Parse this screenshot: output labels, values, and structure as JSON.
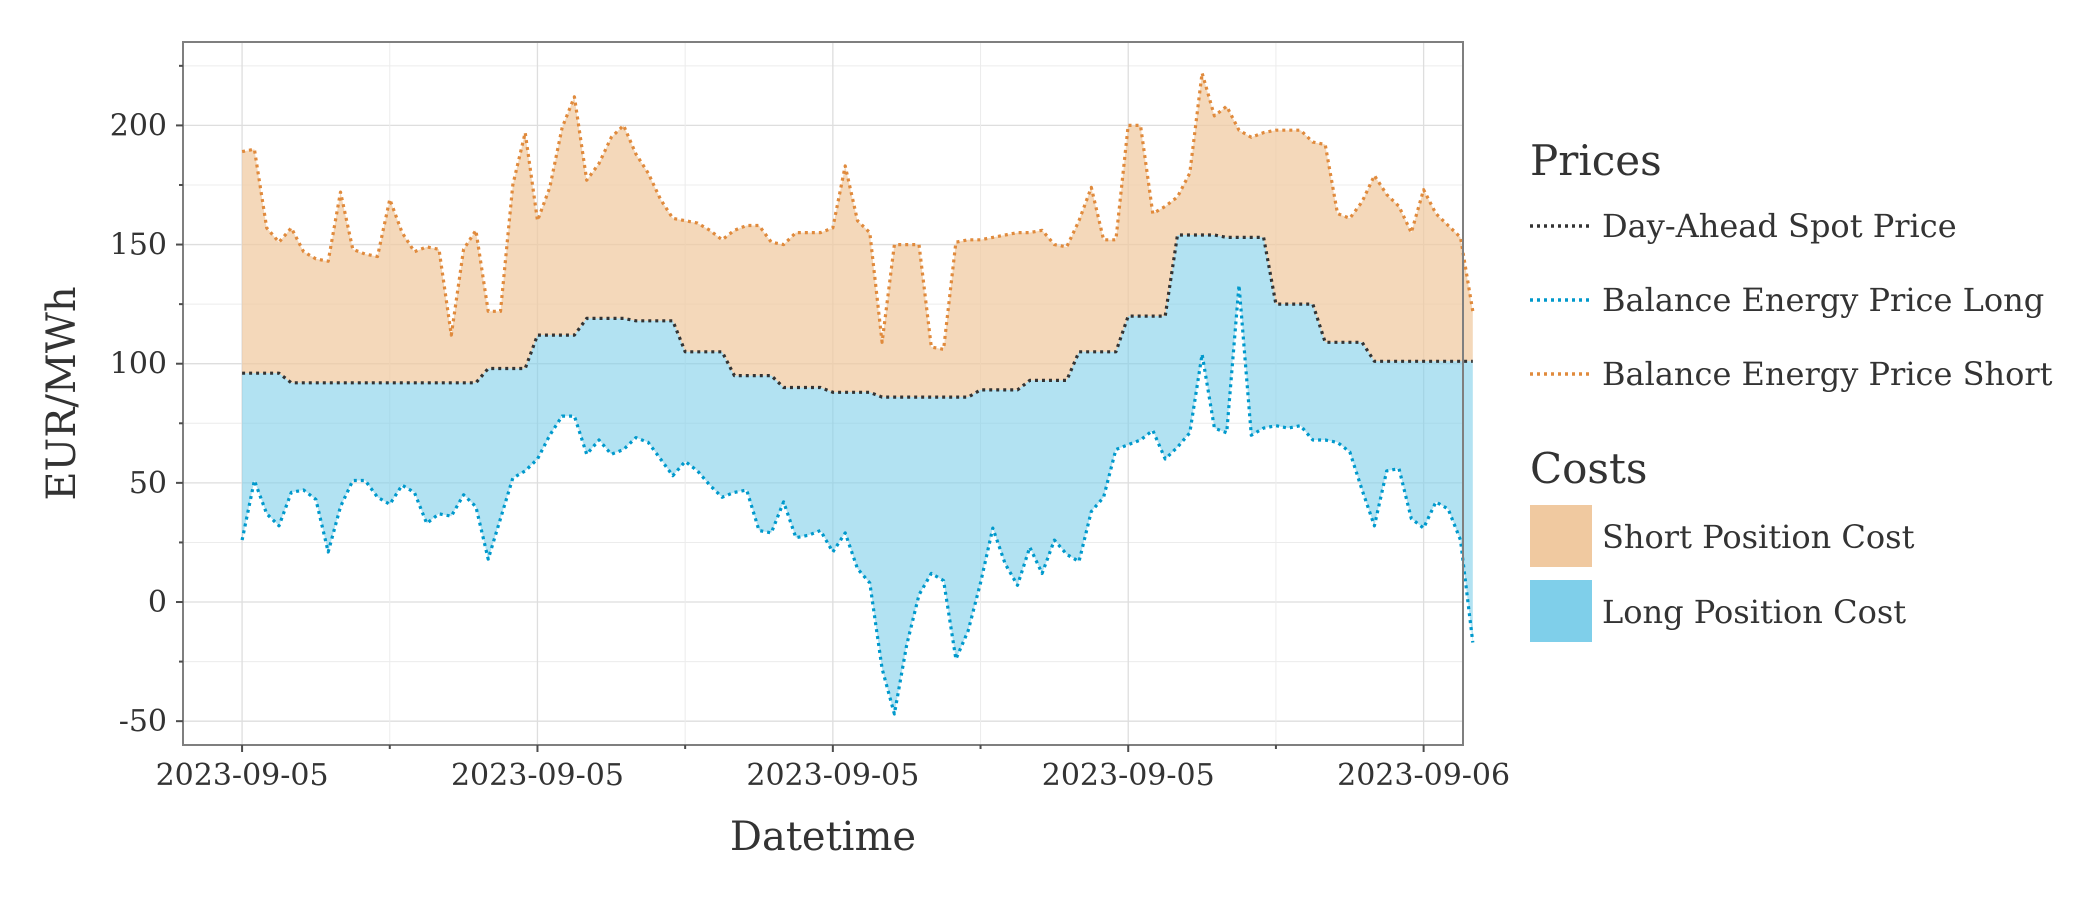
{
  "chart_data": {
    "type": "area",
    "title": "",
    "xlabel": "Datetime",
    "ylabel": "EUR/MWh",
    "xticks": [
      "2023-09-05",
      "2023-09-05",
      "2023-09-05",
      "2023-09-05",
      "2023-09-06"
    ],
    "xtick_hours": [
      0,
      6,
      12,
      18,
      24
    ],
    "yticks": [
      "-50",
      "0",
      "50",
      "100",
      "150",
      "200"
    ],
    "ylim": [
      -60,
      235
    ],
    "xlim_hours": [
      -1.2,
      24.8
    ],
    "grid": true,
    "legend_position": "right",
    "legend": {
      "prices_title": "Prices",
      "costs_title": "Costs",
      "prices": [
        {
          "label": "Day-Ahead Spot Price",
          "color": "#333333"
        },
        {
          "label": "Balance Energy Price Long",
          "color": "#0099cc"
        },
        {
          "label": "Balance Energy Price Short",
          "color": "#e08a3c"
        }
      ],
      "costs": [
        {
          "label": "Short Position Cost",
          "color": "#f0c9a0"
        },
        {
          "label": "Long Position Cost",
          "color": "#7fcfea"
        }
      ]
    },
    "series": [
      {
        "name": "Day-Ahead Spot Price",
        "interval_hours": 1,
        "values": [
          96,
          92,
          92,
          92,
          92,
          98,
          112,
          119,
          118,
          105,
          95,
          90,
          88,
          86,
          86,
          89,
          93,
          105,
          120,
          154,
          153,
          125,
          109,
          101
        ]
      },
      {
        "name": "Balance Energy Price Long",
        "interval_hours": 0.25,
        "values": [
          26,
          51,
          37,
          32,
          46,
          47,
          43,
          21,
          40,
          51,
          51,
          44,
          41,
          49,
          46,
          33,
          37,
          36,
          45,
          40,
          18,
          35,
          52,
          55,
          60,
          70,
          78,
          78,
          62,
          68,
          62,
          64,
          69,
          67,
          60,
          53,
          59,
          55,
          49,
          44,
          46,
          47,
          30,
          29,
          42,
          27,
          28,
          30,
          21,
          29,
          14,
          8,
          -28,
          -47,
          -18,
          3,
          12,
          9,
          -24,
          -12,
          8,
          31,
          16,
          7,
          23,
          12,
          26,
          20,
          17,
          38,
          44,
          64,
          66,
          68,
          72,
          60,
          65,
          71,
          104,
          73,
          71,
          133,
          70,
          73,
          74,
          73,
          74,
          68,
          68,
          67,
          63,
          47,
          32,
          55,
          56,
          35,
          31,
          42,
          39,
          26,
          -17
        ]
      },
      {
        "name": "Balance Energy Price Short",
        "interval_hours": 0.25,
        "values": [
          189,
          190,
          157,
          151,
          157,
          147,
          144,
          143,
          172,
          148,
          146,
          145,
          169,
          155,
          147,
          149,
          148,
          112,
          148,
          156,
          122,
          122,
          175,
          197,
          160,
          174,
          199,
          212,
          177,
          184,
          195,
          200,
          188,
          180,
          169,
          161,
          160,
          159,
          156,
          152,
          156,
          158,
          158,
          151,
          150,
          155,
          155,
          155,
          157,
          183,
          160,
          155,
          109,
          150,
          150,
          150,
          107,
          106,
          151,
          152,
          152,
          153,
          154,
          155,
          155,
          156,
          150,
          149,
          160,
          174,
          152,
          152,
          200,
          200,
          163,
          166,
          170,
          180,
          222,
          204,
          208,
          198,
          195,
          197,
          198,
          198,
          198,
          193,
          192,
          163,
          161,
          168,
          179,
          171,
          166,
          155,
          173,
          163,
          158,
          153,
          122
        ]
      }
    ]
  }
}
